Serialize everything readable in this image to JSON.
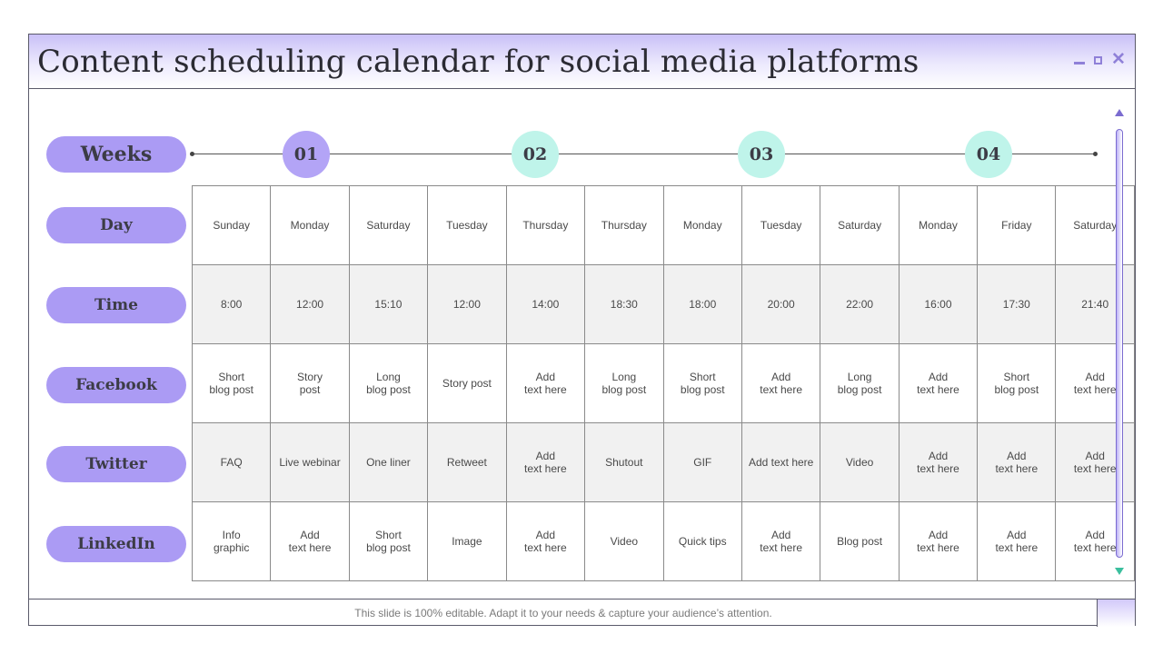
{
  "title": "Content scheduling calendar for social media platforms",
  "window_controls": {
    "minimize": "minimize",
    "maximize": "maximize",
    "close": "✕"
  },
  "colors": {
    "pill": "#ab9bf4",
    "week_purple": "#b3a4f6",
    "week_teal": "#bff4ea",
    "shade_row": "#f1f1f1"
  },
  "weeks_label": "Weeks",
  "weeks": [
    {
      "label": "01",
      "color": "#b3a4f6"
    },
    {
      "label": "02",
      "color": "#bff4ea"
    },
    {
      "label": "03",
      "color": "#bff4ea"
    },
    {
      "label": "04",
      "color": "#bff4ea"
    }
  ],
  "rows": [
    {
      "label": "Day",
      "cells": [
        "Sunday",
        "Monday",
        "Saturday",
        "Tuesday",
        "Thursday",
        "Thursday",
        "Monday",
        "Tuesday",
        "Saturday",
        "Monday",
        "Friday",
        "Saturday"
      ]
    },
    {
      "label": "Time",
      "cells": [
        "8:00",
        "12:00",
        "15:10",
        "12:00",
        "14:00",
        "18:30",
        "18:00",
        "20:00",
        "22:00",
        "16:00",
        "17:30",
        "21:40"
      ]
    },
    {
      "label": "Facebook",
      "cells": [
        "Short\nblog post",
        "Story\npost",
        "Long\nblog post",
        "Story post",
        "Add\ntext here",
        "Long\nblog post",
        "Short\nblog post",
        "Add\ntext here",
        "Long\nblog post",
        "Add\ntext here",
        "Short\nblog post",
        "Add\ntext here"
      ]
    },
    {
      "label": "Twitter",
      "cells": [
        "FAQ",
        "Live webinar",
        "One liner",
        "Retweet",
        "Add\ntext here",
        "Shutout",
        "GIF",
        "Add text here",
        "Video",
        "Add\ntext here",
        "Add\ntext here",
        "Add\ntext here"
      ]
    },
    {
      "label": "LinkedIn",
      "cells": [
        "Info\ngraphic",
        "Add\ntext here",
        "Short\nblog post",
        "Image",
        "Add\ntext here",
        "Video",
        "Quick tips",
        "Add\ntext here",
        "Blog post",
        "Add\ntext here",
        "Add\ntext here",
        "Add\ntext here"
      ]
    }
  ],
  "footer": "This slide is 100% editable. Adapt it to your needs & capture your audience’s attention."
}
